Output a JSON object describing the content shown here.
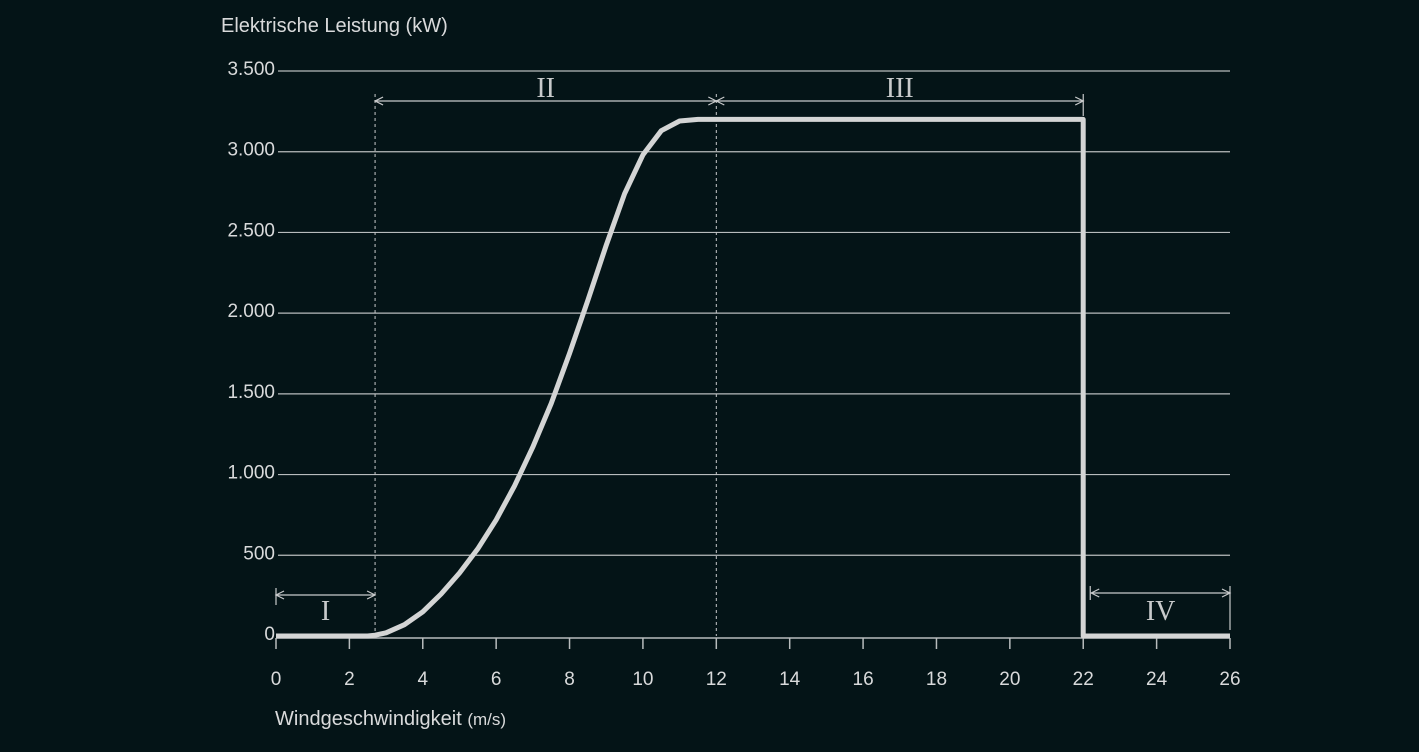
{
  "chart_data": {
    "type": "line",
    "ylabel": "Elektrische Leistung (kW)",
    "xlabel": "Windgeschwindigkeit",
    "xlabel_unit": "(m/s)",
    "xlim": [
      0,
      26
    ],
    "ylim": [
      0,
      3500
    ],
    "x_ticks": [
      0,
      2,
      4,
      6,
      8,
      10,
      12,
      14,
      16,
      18,
      20,
      22,
      24,
      26
    ],
    "x_tick_labels": [
      "0",
      "2",
      "4",
      "6",
      "8",
      "10",
      "12",
      "14",
      "16",
      "18",
      "20",
      "22",
      "24",
      "26"
    ],
    "y_ticks": [
      0,
      500,
      1000,
      1500,
      2000,
      2500,
      3000,
      3500
    ],
    "y_tick_labels": [
      "0",
      "500",
      "1.000",
      "1.500",
      "2.000",
      "2.500",
      "3.000",
      "3.500"
    ],
    "grid": "horizontal",
    "series": [
      {
        "x": [
          0,
          2.5,
          2.7,
          3,
          3.5,
          4,
          4.5,
          5,
          5.5,
          6,
          6.5,
          7,
          7.5,
          8,
          8.5,
          9,
          9.5,
          10,
          10.5,
          11,
          11.5,
          12,
          22,
          22,
          26
        ],
        "y": [
          0,
          0,
          5,
          20,
          70,
          150,
          260,
          390,
          540,
          720,
          930,
          1170,
          1440,
          1750,
          2080,
          2420,
          2740,
          2980,
          3130,
          3190,
          3200,
          3200,
          3200,
          0,
          0
        ]
      }
    ],
    "regions": [
      {
        "label": "I",
        "from": 0,
        "to": 2.7
      },
      {
        "label": "II",
        "from": 2.7,
        "to": 12
      },
      {
        "label": "III",
        "from": 12,
        "to": 22
      },
      {
        "label": "IV",
        "from": 22,
        "to": 26
      }
    ],
    "colors": {
      "background": "#041417",
      "grid": "#b8bcbd",
      "curve": "#d4d5d5",
      "text": "#d9dadb",
      "annotation": "#c8cacb"
    }
  }
}
